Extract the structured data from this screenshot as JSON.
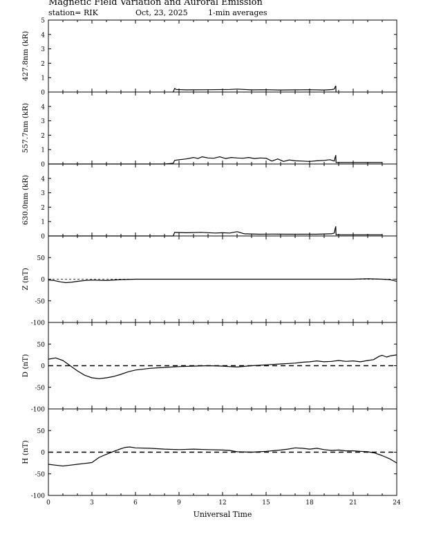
{
  "header": {
    "title": "Magnetic Field Variation and Auroral Emission",
    "station": "station= RIK",
    "date": "Oct, 23, 2025",
    "averaging": "1-min averages"
  },
  "chart_data": [
    {
      "type": "line",
      "ylabel": "427.8nm (kR)",
      "xlim": [
        0,
        24
      ],
      "ylim": [
        0,
        5
      ],
      "yticks": [
        0,
        1,
        2,
        3,
        4,
        5
      ],
      "x": [
        8.6,
        8.7,
        8.8,
        9.5,
        11,
        12.5,
        13,
        14,
        15,
        16,
        17,
        18,
        19,
        19.5,
        19.7,
        19.75,
        19.8,
        19.82
      ],
      "series": [
        {
          "values": [
            0.0,
            0.25,
            0.18,
            0.15,
            0.16,
            0.18,
            0.2,
            0.15,
            0.16,
            0.14,
            0.15,
            0.16,
            0.14,
            0.17,
            0.2,
            0.35,
            0.42,
            0.0
          ]
        }
      ]
    },
    {
      "type": "line",
      "ylabel": "557.7nm (kR)",
      "xlim": [
        0,
        24
      ],
      "ylim": [
        0,
        5
      ],
      "yticks": [
        0,
        1,
        2,
        3,
        4
      ],
      "x": [
        0,
        8.0,
        8.6,
        8.7,
        9.0,
        9.5,
        10.0,
        10.3,
        10.6,
        11.0,
        11.4,
        11.8,
        12.2,
        12.6,
        13.0,
        13.4,
        13.8,
        14.2,
        14.6,
        15.0,
        15.4,
        15.8,
        16.2,
        16.6,
        17.0,
        17.5,
        18.0,
        18.5,
        19.0,
        19.4,
        19.7,
        19.75,
        19.8,
        19.82,
        20.5,
        23.0
      ],
      "series": [
        {
          "values": [
            0,
            0,
            0.05,
            0.25,
            0.3,
            0.35,
            0.45,
            0.38,
            0.5,
            0.42,
            0.4,
            0.5,
            0.38,
            0.45,
            0.42,
            0.4,
            0.45,
            0.38,
            0.42,
            0.4,
            0.2,
            0.35,
            0.18,
            0.28,
            0.22,
            0.2,
            0.18,
            0.22,
            0.25,
            0.3,
            0.2,
            0.45,
            0.6,
            0.1,
            0.1,
            0.1
          ]
        }
      ]
    },
    {
      "type": "line",
      "ylabel": "630.0nm (kR)",
      "xlim": [
        0,
        24
      ],
      "ylim": [
        0,
        5
      ],
      "yticks": [
        0,
        1,
        2,
        3,
        4
      ],
      "x": [
        0,
        8.6,
        8.7,
        9.5,
        10.5,
        11.5,
        12.0,
        12.5,
        13.0,
        13.5,
        14.5,
        15.5,
        16.5,
        17.5,
        18.5,
        19.5,
        19.7,
        19.75,
        19.8,
        19.82,
        21.0,
        23.0
      ],
      "series": [
        {
          "values": [
            0,
            0,
            0.25,
            0.22,
            0.25,
            0.2,
            0.22,
            0.2,
            0.3,
            0.15,
            0.12,
            0.13,
            0.12,
            0.12,
            0.12,
            0.15,
            0.2,
            0.5,
            0.65,
            0.08,
            0.08,
            0.08
          ]
        }
      ]
    },
    {
      "type": "line",
      "ylabel": "Z (nT)",
      "xlim": [
        0,
        24
      ],
      "ylim": [
        -100,
        100
      ],
      "yticks": [
        -100,
        -50,
        0,
        50
      ],
      "x": [
        0,
        0.4,
        0.8,
        1.2,
        1.6,
        2.0,
        2.5,
        3.0,
        4.0,
        5.0,
        6.0,
        8.0,
        10.0,
        12.0,
        14.0,
        16.0,
        18.0,
        20.0,
        21.0,
        22.0,
        23.0,
        23.5,
        24.0
      ],
      "series": [
        {
          "values": [
            -2,
            -3,
            -6,
            -8,
            -7,
            -5,
            -3,
            -2,
            -3,
            -1,
            0,
            0,
            0,
            0,
            0,
            0,
            0,
            0,
            0,
            1,
            0,
            -1,
            -5
          ]
        }
      ]
    },
    {
      "type": "line",
      "ylabel": "D (nT)",
      "xlim": [
        0,
        24
      ],
      "ylim": [
        -100,
        100
      ],
      "yticks": [
        -100,
        -50,
        0,
        50
      ],
      "x": [
        0,
        0.5,
        1.0,
        1.5,
        2.0,
        2.5,
        3.0,
        3.5,
        4.0,
        4.5,
        5.0,
        5.5,
        6.0,
        7.0,
        8.0,
        9.0,
        10.0,
        11.0,
        12.0,
        12.5,
        13.0,
        14.0,
        15.0,
        16.0,
        17.0,
        17.5,
        18.0,
        18.5,
        19.0,
        19.5,
        20.0,
        20.5,
        21.0,
        21.5,
        22.0,
        22.4,
        22.8,
        23.0,
        23.3,
        23.6,
        24.0
      ],
      "series": [
        {
          "values": [
            15,
            18,
            12,
            0,
            -12,
            -22,
            -28,
            -30,
            -28,
            -25,
            -20,
            -14,
            -10,
            -6,
            -4,
            -2,
            -1,
            0,
            -1,
            -2,
            -3,
            0,
            2,
            4,
            6,
            8,
            9,
            11,
            9,
            10,
            12,
            10,
            11,
            9,
            12,
            14,
            22,
            24,
            20,
            23,
            25
          ]
        }
      ]
    },
    {
      "type": "line",
      "ylabel": "H (nT)",
      "xlim": [
        0,
        24
      ],
      "ylim": [
        -100,
        100
      ],
      "yticks": [
        -100,
        -50,
        0,
        50
      ],
      "x": [
        0,
        0.5,
        1.0,
        1.5,
        2.0,
        2.5,
        3.0,
        3.5,
        4.0,
        4.5,
        5.0,
        5.3,
        5.6,
        6.0,
        7.0,
        8.0,
        9.0,
        10.0,
        11.0,
        12.0,
        12.5,
        13.0,
        14.0,
        15.0,
        16.0,
        16.5,
        17.0,
        17.5,
        18.0,
        18.5,
        19.0,
        19.5,
        20.0,
        20.5,
        21.0,
        21.5,
        22.0,
        22.5,
        23.0,
        23.5,
        24.0
      ],
      "series": [
        {
          "values": [
            -28,
            -30,
            -32,
            -30,
            -28,
            -26,
            -24,
            -12,
            -5,
            2,
            8,
            11,
            12,
            10,
            9,
            7,
            6,
            7,
            6,
            5,
            4,
            1,
            0,
            2,
            5,
            7,
            10,
            9,
            7,
            9,
            6,
            4,
            5,
            3,
            3,
            2,
            1,
            -2,
            -8,
            -15,
            -25
          ]
        }
      ]
    }
  ],
  "xaxis": {
    "label": "Universal Time",
    "ticks": [
      0,
      3,
      6,
      9,
      12,
      15,
      18,
      21,
      24
    ]
  }
}
